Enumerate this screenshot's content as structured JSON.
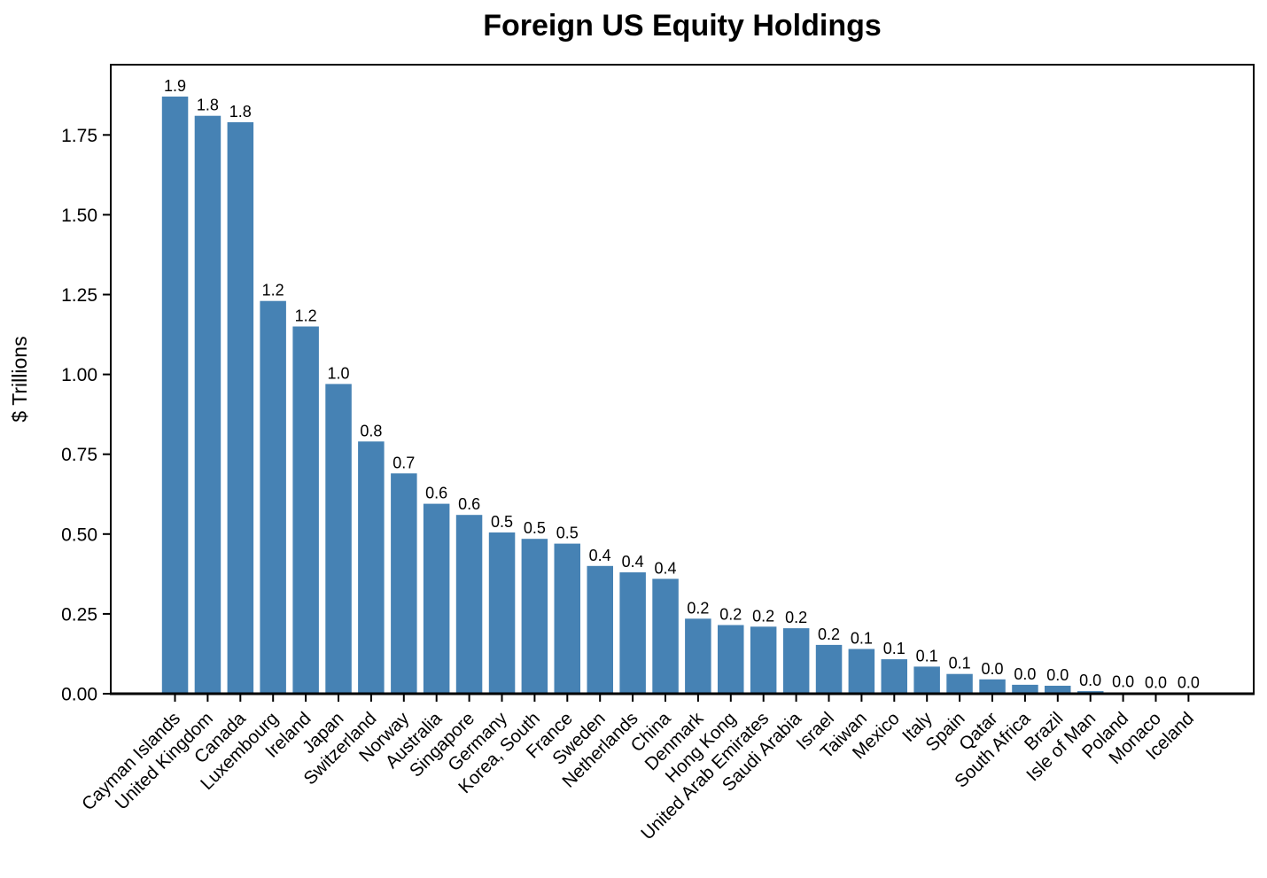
{
  "chart_data": {
    "type": "bar",
    "title": "Foreign US Equity Holdings",
    "xlabel": "",
    "ylabel": "$ Trillions",
    "ylim": [
      0,
      1.97
    ],
    "grid": false,
    "legend": null,
    "bar_color": "#4682b4",
    "axis_color": "#000000",
    "ytick_labels": [
      "0.00",
      "0.25",
      "0.50",
      "0.75",
      "1.00",
      "1.25",
      "1.50",
      "1.75"
    ],
    "ytick_values": [
      0,
      0.25,
      0.5,
      0.75,
      1.0,
      1.25,
      1.5,
      1.75
    ],
    "categories": [
      "Cayman Islands",
      "United Kingdom",
      "Canada",
      "Luxembourg",
      "Ireland",
      "Japan",
      "Switzerland",
      "Norway",
      "Australia",
      "Singapore",
      "Germany",
      "Korea, South",
      "France",
      "Sweden",
      "Netherlands",
      "China",
      "Denmark",
      "Hong Kong",
      "United Arab Emirates",
      "Saudi Arabia",
      "Israel",
      "Taiwan",
      "Mexico",
      "Italy",
      "Spain",
      "Qatar",
      "South Africa",
      "Brazil",
      "Isle of Man",
      "Poland",
      "Monaco",
      "Iceland"
    ],
    "values": [
      1.87,
      1.81,
      1.79,
      1.23,
      1.15,
      0.97,
      0.79,
      0.69,
      0.595,
      0.56,
      0.505,
      0.485,
      0.47,
      0.4,
      0.38,
      0.36,
      0.235,
      0.215,
      0.21,
      0.205,
      0.153,
      0.14,
      0.108,
      0.085,
      0.062,
      0.045,
      0.028,
      0.025,
      0.008,
      0.004,
      0.002,
      0.002
    ],
    "bar_labels": [
      "1.9",
      "1.8",
      "1.8",
      "1.2",
      "1.2",
      "1.0",
      "0.8",
      "0.7",
      "0.6",
      "0.6",
      "0.5",
      "0.5",
      "0.5",
      "0.4",
      "0.4",
      "0.4",
      "0.2",
      "0.2",
      "0.2",
      "0.2",
      "0.2",
      "0.1",
      "0.1",
      "0.1",
      "0.1",
      "0.0",
      "0.0",
      "0.0",
      "0.0",
      "0.0",
      "0.0",
      "0.0"
    ]
  }
}
